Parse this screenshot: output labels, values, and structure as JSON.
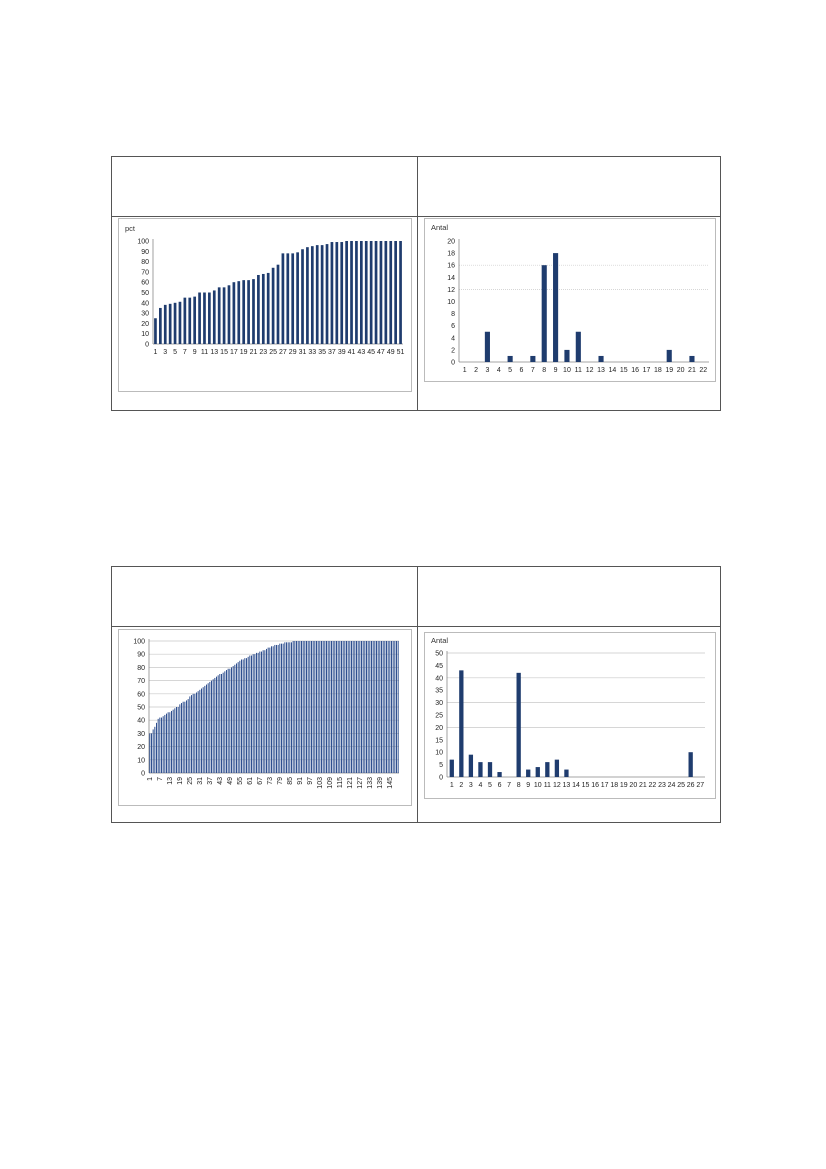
{
  "chart_data": [
    {
      "type": "bar",
      "ylabel": "pct",
      "ylim": [
        0,
        100
      ],
      "yticks": [
        0,
        10,
        20,
        30,
        40,
        50,
        60,
        70,
        80,
        90,
        100
      ],
      "grid": false,
      "bar_color": "#1f3c6e",
      "categories": [
        1,
        2,
        3,
        4,
        5,
        6,
        7,
        8,
        9,
        10,
        11,
        12,
        13,
        14,
        15,
        16,
        17,
        18,
        19,
        20,
        21,
        22,
        23,
        24,
        25,
        26,
        27,
        28,
        29,
        30,
        31,
        32,
        33,
        34,
        35,
        36,
        37,
        38,
        39,
        40,
        41,
        42,
        43,
        44,
        45,
        46,
        47,
        48,
        49,
        50,
        51
      ],
      "tick_labels": [
        "1",
        "3",
        "5",
        "7",
        "9",
        "11",
        "13",
        "15",
        "17",
        "19",
        "21",
        "23",
        "25",
        "27",
        "29",
        "31",
        "33",
        "35",
        "37",
        "39",
        "41",
        "43",
        "45",
        "47",
        "49",
        "51"
      ],
      "values": [
        25,
        35,
        38,
        39,
        40,
        41,
        45,
        45,
        46,
        50,
        50,
        50,
        52,
        55,
        55,
        57,
        60,
        61,
        62,
        62,
        63,
        67,
        68,
        69,
        74,
        77,
        88,
        88,
        88,
        89,
        92,
        94,
        95,
        96,
        96,
        97,
        99,
        99,
        99,
        100,
        100,
        100,
        100,
        100,
        100,
        100,
        100,
        100,
        100,
        100,
        100
      ]
    },
    {
      "type": "bar",
      "ylabel": "Antal",
      "ylim": [
        0,
        20
      ],
      "yticks": [
        0,
        2,
        4,
        6,
        8,
        10,
        12,
        14,
        16,
        18,
        20
      ],
      "grid": true,
      "grid_lines": [
        12,
        16
      ],
      "bar_color": "#1f3c6e",
      "categories": [
        "1",
        "2",
        "3",
        "4",
        "5",
        "6",
        "7",
        "8",
        "9",
        "10",
        "11",
        "12",
        "13",
        "14",
        "15",
        "16",
        "17",
        "18",
        "19",
        "20",
        "21",
        "22"
      ],
      "values": [
        0,
        0,
        5,
        0,
        1,
        0,
        1,
        16,
        18,
        2,
        5,
        0,
        1,
        0,
        0,
        0,
        0,
        0,
        2,
        0,
        1,
        0
      ]
    },
    {
      "type": "bar",
      "ylabel": "",
      "ylim": [
        0,
        100
      ],
      "yticks": [
        0,
        10,
        20,
        30,
        40,
        50,
        60,
        70,
        80,
        90,
        100
      ],
      "grid": true,
      "bar_color": "#2f4f8f",
      "n_bars": 150,
      "tick_labels": [
        "1",
        "7",
        "13",
        "19",
        "25",
        "31",
        "37",
        "43",
        "49",
        "55",
        "61",
        "67",
        "73",
        "79",
        "85",
        "91",
        "97",
        "103",
        "109",
        "115",
        "121",
        "127",
        "133",
        "139",
        "145"
      ],
      "values": [
        30,
        30,
        33,
        35,
        38,
        41,
        42,
        42,
        43,
        44,
        45,
        46,
        46,
        47,
        48,
        49,
        50,
        50,
        52,
        53,
        54,
        54,
        55,
        56,
        58,
        59,
        60,
        60,
        61,
        62,
        63,
        64,
        65,
        66,
        67,
        68,
        69,
        70,
        71,
        72,
        73,
        74,
        75,
        75,
        76,
        77,
        78,
        79,
        79,
        80,
        81,
        82,
        83,
        84,
        85,
        86,
        86,
        87,
        87,
        88,
        89,
        89,
        90,
        90,
        91,
        91,
        92,
        92,
        93,
        93,
        94,
        95,
        95,
        96,
        96,
        97,
        97,
        97,
        98,
        98,
        98,
        99,
        99,
        99,
        99,
        99,
        100,
        100,
        100,
        100,
        100,
        100,
        100,
        100,
        100,
        100,
        100,
        100,
        100,
        100,
        100,
        100,
        100,
        100,
        100,
        100,
        100,
        100,
        100,
        100,
        100,
        100,
        100,
        100,
        100,
        100,
        100,
        100,
        100,
        100,
        100,
        100,
        100,
        100,
        100,
        100,
        100,
        100,
        100,
        100,
        100,
        100,
        100,
        100,
        100,
        100,
        100,
        100,
        100,
        100,
        100,
        100,
        100,
        100,
        100,
        100,
        100,
        100,
        100,
        100
      ]
    },
    {
      "type": "bar",
      "ylabel": "Antal",
      "ylim": [
        0,
        50
      ],
      "yticks": [
        0,
        5,
        10,
        15,
        20,
        25,
        30,
        35,
        40,
        45,
        50
      ],
      "grid": true,
      "grid_lines": [
        20,
        30,
        40,
        50
      ],
      "bar_color": "#1f3c6e",
      "categories": [
        "1",
        "2",
        "3",
        "4",
        "5",
        "6",
        "7",
        "8",
        "9",
        "10",
        "11",
        "12",
        "13",
        "14",
        "15",
        "16",
        "17",
        "18",
        "19",
        "20",
        "21",
        "22",
        "23",
        "24",
        "25",
        "26",
        "27"
      ],
      "values": [
        7,
        43,
        9,
        6,
        6,
        2,
        0,
        42,
        3,
        4,
        6,
        7,
        3,
        0,
        0,
        0,
        0,
        0,
        0,
        0,
        0,
        0,
        0,
        0,
        0,
        10,
        0
      ]
    }
  ]
}
